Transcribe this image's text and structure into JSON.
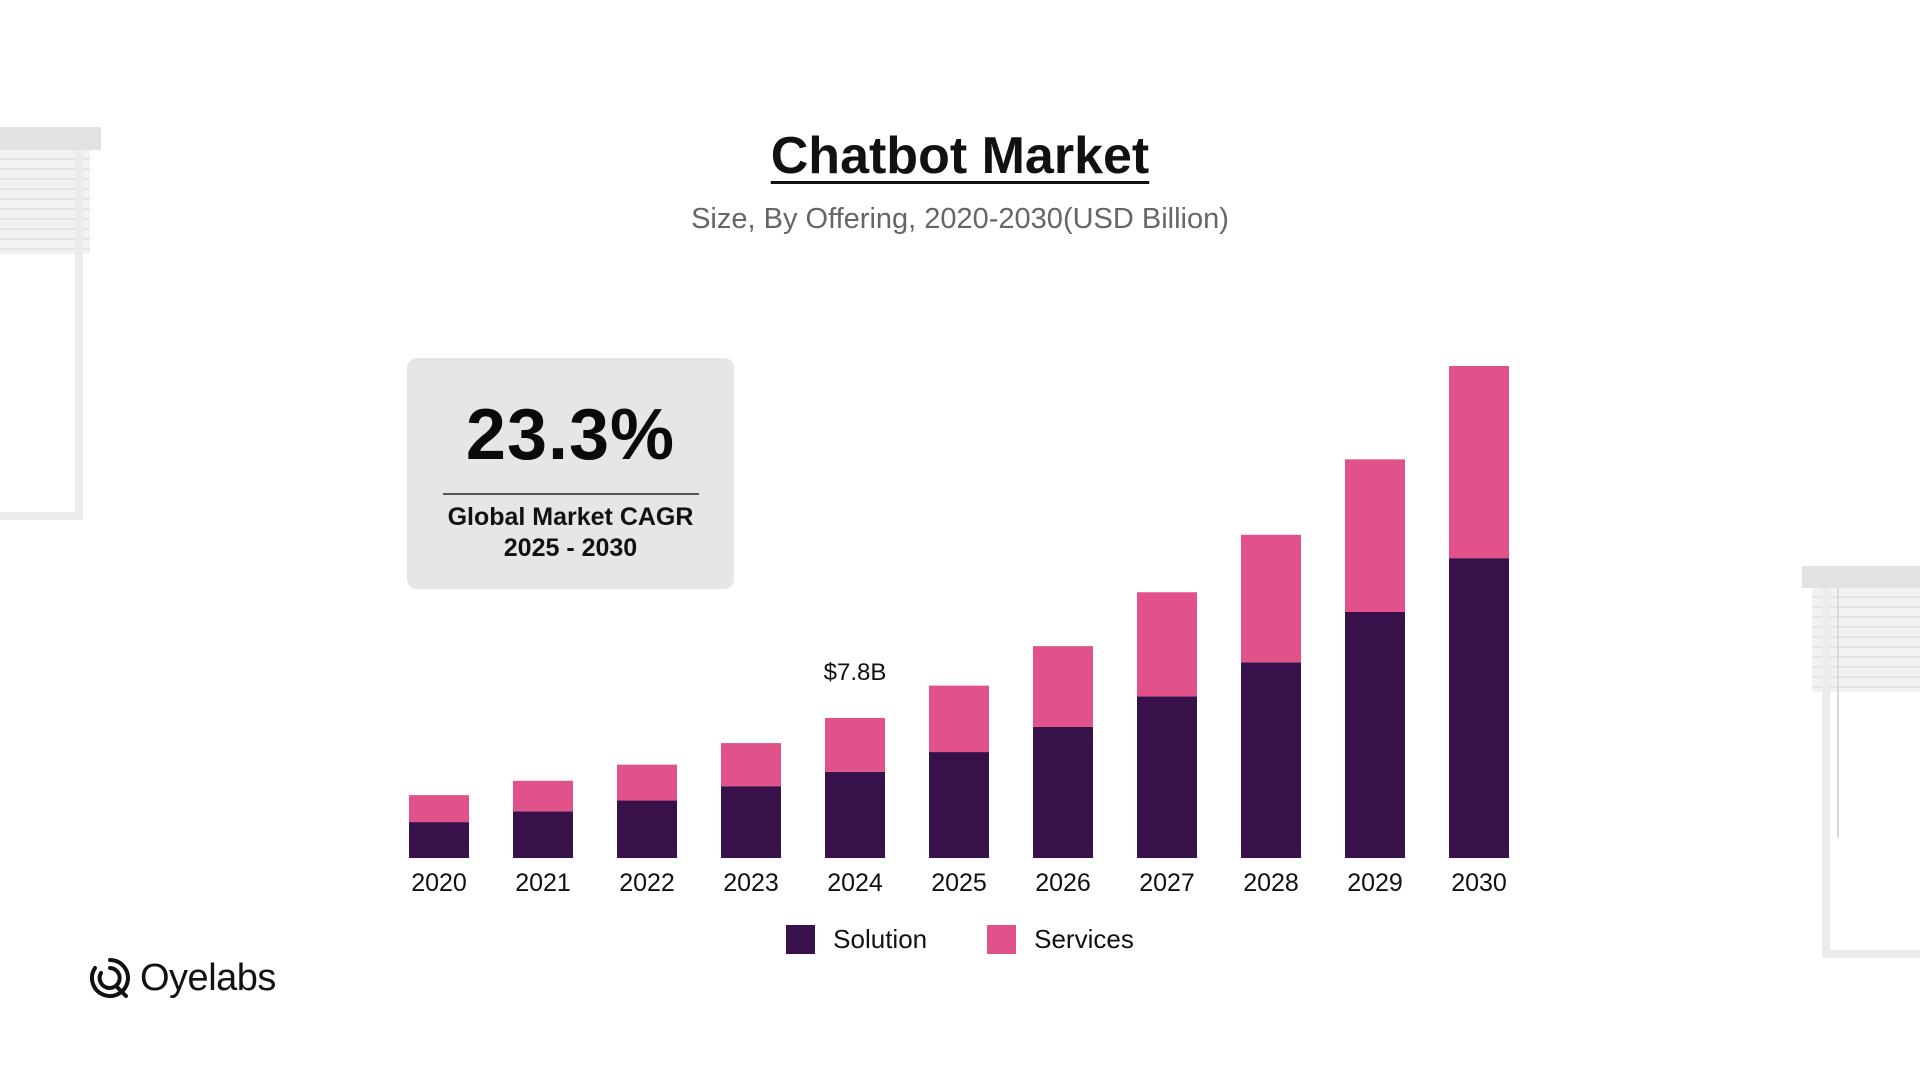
{
  "colors": {
    "solution": "#38114a",
    "services": "#e05289",
    "card_bg": "#e6e6e6"
  },
  "chart_data": {
    "type": "bar",
    "stacked": true,
    "title": "Chatbot Market",
    "subtitle": "Size, By Offering, 2020-2030(USD Billion)",
    "categories": [
      "2020",
      "2021",
      "2022",
      "2023",
      "2024",
      "2025",
      "2026",
      "2027",
      "2028",
      "2029",
      "2030"
    ],
    "series": [
      {
        "name": "Solution",
        "values": [
          2.0,
          2.6,
          3.2,
          4.0,
          4.8,
          5.9,
          7.3,
          9.0,
          10.9,
          13.7,
          16.7
        ]
      },
      {
        "name": "Services",
        "values": [
          1.5,
          1.7,
          2.0,
          2.4,
          3.0,
          3.7,
          4.5,
          5.8,
          7.1,
          8.5,
          10.7
        ]
      }
    ],
    "annotations": [
      {
        "category": "2024",
        "label": "$7.8B"
      }
    ],
    "ylim": [
      0,
      27.4
    ],
    "grid": false,
    "legend": "bottom-center",
    "xlabel": "",
    "ylabel": ""
  },
  "cagr_card": {
    "value": "23.3%",
    "label_line1": "Global Market CAGR",
    "label_line2": "2025 - 2030"
  },
  "logo": {
    "text": "Oyelabs",
    "icon": "oyelabs-logo-icon"
  }
}
